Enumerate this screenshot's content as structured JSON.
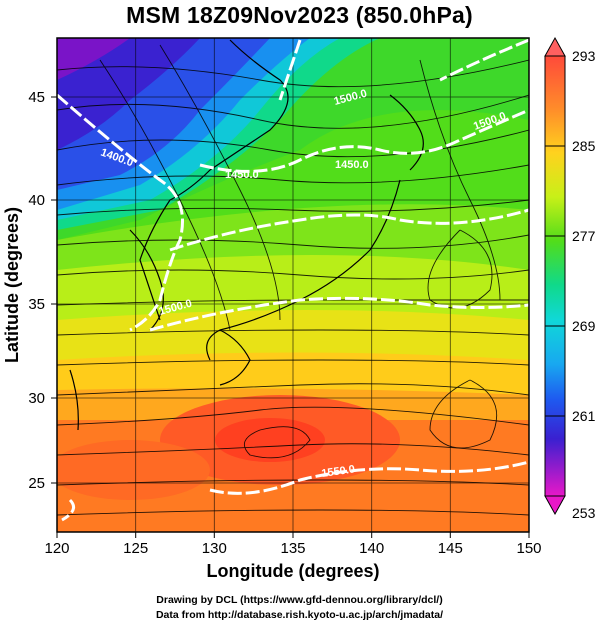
{
  "title": "MSM 18Z09Nov2023 (850.0hPa)",
  "x_axis": {
    "label": "Longitude (degrees)",
    "ticks": [
      "120",
      "125",
      "130",
      "135",
      "140",
      "145",
      "150"
    ]
  },
  "y_axis": {
    "label": "Latitude  (degrees)",
    "ticks": [
      "25",
      "30",
      "35",
      "40",
      "45"
    ]
  },
  "colorbar": {
    "ticks": [
      "293",
      "285",
      "277",
      "269",
      "261",
      "253"
    ],
    "min": 253,
    "max": 293,
    "colors": [
      "#ff3a66",
      "#ff4a3a",
      "#ff8c2a",
      "#ffd21e",
      "#c8f018",
      "#52dd1a",
      "#10d98a",
      "#10d8d8",
      "#18a8f0",
      "#1e5af0",
      "#3a20d0",
      "#9a10c8",
      "#e818c8"
    ]
  },
  "contour_labels": [
    "1400.0",
    "1450.0",
    "1450.0",
    "1500.0",
    "1500.0",
    "1500.0",
    "1550.0"
  ],
  "footer": {
    "line1": "Drawing by DCL (https://www.gfd-dennou.org/library/dcl/)",
    "line2": "Data from http://database.rish.kyoto-u.ac.jp/arch/jmadata/"
  },
  "chart_data": {
    "type": "heatmap",
    "title": "MSM 18Z09Nov2023 (850.0hPa)",
    "xlabel": "Longitude (degrees)",
    "ylabel": "Latitude  (degrees)",
    "xlim": [
      120,
      150
    ],
    "ylim": [
      22.5,
      47.5
    ],
    "xticks": [
      120,
      125,
      130,
      135,
      140,
      145,
      150
    ],
    "yticks": [
      25,
      30,
      35,
      40,
      45
    ],
    "colorbar_range": [
      253,
      293
    ],
    "colorbar_ticks": [
      253,
      261,
      269,
      277,
      285,
      293
    ],
    "overlays": [
      "temperature shading",
      "streamlines",
      "geopotential height contours",
      "coastlines",
      "grid"
    ],
    "contour_levels": [
      1400,
      1450,
      1500,
      1550
    ],
    "grid": true
  }
}
